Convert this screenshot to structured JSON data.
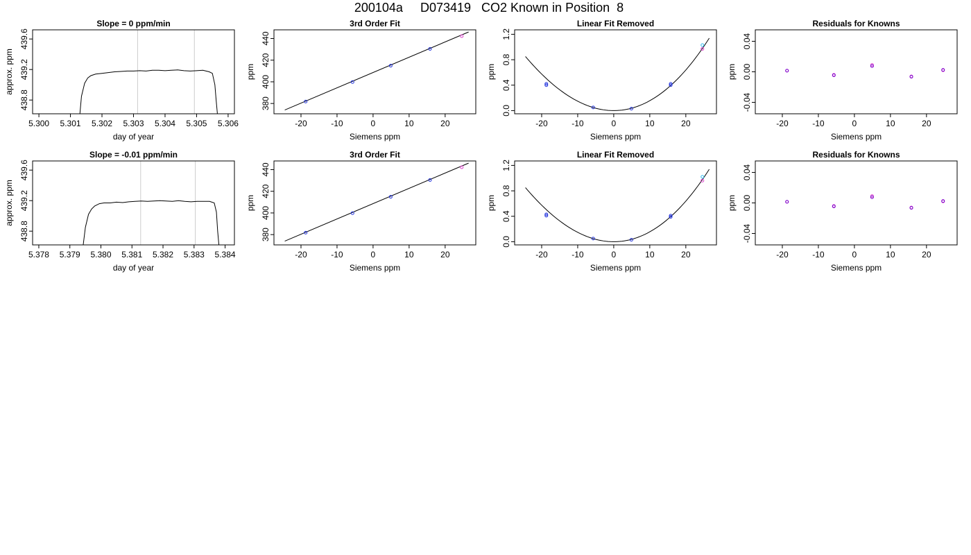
{
  "page": {
    "title": "200104a     D073419   CO2 Known in Position  8"
  },
  "colors": {
    "line": "#000000",
    "frame": "#000000",
    "vline": "#cccccc",
    "pt_cyan": "#33bbee",
    "pt_blue": "#2233dd",
    "pt_magenta": "#dd44cc",
    "pt_purple": "#7700cc"
  },
  "chart_data": [
    {
      "type": "line",
      "title": "Slope =  0  ppm/min",
      "xlabel": "day of year",
      "ylabel": "approx. ppm",
      "xlim": [
        5.2998,
        5.3062
      ],
      "ylim": [
        438.62,
        439.72
      ],
      "xticks": [
        5.3,
        5.301,
        5.302,
        5.303,
        5.304,
        5.305,
        5.306
      ],
      "xtick_labels": [
        "5.300",
        "5.301",
        "5.302",
        "5.303",
        "5.304",
        "5.305",
        "5.306"
      ],
      "yticks": [
        438.8,
        439.2,
        439.6
      ],
      "ytick_labels": [
        "438.8",
        "439.2",
        "439.6"
      ],
      "vlines": [
        5.30313,
        5.30493
      ],
      "series": [
        {
          "x": [
            5.3013,
            5.30135,
            5.30145,
            5.30155,
            5.30165,
            5.3018,
            5.302,
            5.3022,
            5.3024,
            5.3026,
            5.3028,
            5.303,
            5.3032,
            5.3034,
            5.3036,
            5.3038,
            5.304,
            5.3042,
            5.3044,
            5.3046,
            5.3048,
            5.305,
            5.3052,
            5.3054,
            5.3055,
            5.30558,
            5.30562,
            5.30566
          ],
          "y": [
            438.62,
            438.85,
            439.02,
            439.09,
            439.12,
            439.14,
            439.15,
            439.16,
            439.17,
            439.175,
            439.18,
            439.18,
            439.185,
            439.18,
            439.19,
            439.19,
            439.185,
            439.19,
            439.195,
            439.185,
            439.18,
            439.185,
            439.19,
            439.17,
            439.15,
            439.0,
            438.8,
            438.62
          ]
        }
      ]
    },
    {
      "type": "scatter",
      "title": "3rd Order Fit",
      "xlabel": "Siemens ppm",
      "ylabel": "ppm",
      "xlim": [
        -27.5,
        28.5
      ],
      "ylim": [
        370.5,
        448
      ],
      "xticks": [
        -20,
        -10,
        0,
        10,
        20
      ],
      "xtick_labels": [
        "-20",
        "-10",
        "0",
        "10",
        "20"
      ],
      "yticks": [
        380,
        400,
        420,
        440
      ],
      "ytick_labels": [
        "380",
        "400",
        "420",
        "440"
      ],
      "fit": {
        "kind": "linear",
        "x": [
          -24.5,
          26.5
        ],
        "y": [
          374.0,
          446.0
        ]
      },
      "series": [
        {
          "color": "pt_blue",
          "x": [
            -18.7,
            -5.7,
            4.9,
            15.8
          ],
          "y": [
            381.8,
            399.8,
            414.9,
            430.4
          ]
        },
        {
          "color": "pt_magenta",
          "x": [
            24.6
          ],
          "y": [
            442.2
          ]
        }
      ]
    },
    {
      "type": "scatter",
      "title": "Linear Fit Removed",
      "xlabel": "Siemens ppm",
      "ylabel": "ppm",
      "xlim": [
        -27.5,
        28.5
      ],
      "ylim": [
        -0.05,
        1.27
      ],
      "xticks": [
        -20,
        -10,
        0,
        10,
        20
      ],
      "xtick_labels": [
        "-20",
        "-10",
        "0",
        "10",
        "20"
      ],
      "yticks": [
        0.0,
        0.4,
        0.8,
        1.2
      ],
      "ytick_labels": [
        "0.0",
        "0.4",
        "0.8",
        "1.2"
      ],
      "fit": {
        "kind": "curve",
        "x_from": -24.5,
        "x_to": 26.5,
        "a": 0.001516,
        "b": 4e-06
      },
      "series": [
        {
          "color": "pt_cyan",
          "x": [
            24.6
          ],
          "y": [
            1.03
          ]
        },
        {
          "color": "pt_magenta",
          "x": [
            24.6
          ],
          "y": [
            0.97
          ]
        },
        {
          "color": "pt_blue",
          "x": [
            -18.7,
            -18.7,
            -5.7,
            4.9,
            15.8,
            15.8
          ],
          "y": [
            0.42,
            0.4,
            0.05,
            0.03,
            0.4,
            0.42
          ]
        }
      ]
    },
    {
      "type": "scatter",
      "title": "Residuals for Knowns",
      "xlabel": "Siemens ppm",
      "ylabel": "ppm",
      "xlim": [
        -27.5,
        28.5
      ],
      "ylim": [
        -0.055,
        0.055
      ],
      "xticks": [
        -20,
        -10,
        0,
        10,
        20
      ],
      "xtick_labels": [
        "-20",
        "-10",
        "0",
        "10",
        "20"
      ],
      "yticks": [
        -0.04,
        0.0,
        0.04
      ],
      "ytick_labels": [
        "-0.04",
        "0.00",
        "0.04"
      ],
      "series": [
        {
          "color": "pt_magenta",
          "x": [
            -18.7,
            -5.7,
            4.9,
            15.8,
            24.6
          ],
          "y": [
            0.0015,
            -0.004,
            0.009,
            -0.006,
            0.002
          ]
        },
        {
          "color": "pt_purple",
          "x": [
            -18.7,
            -5.7,
            4.9,
            15.8,
            24.6
          ],
          "y": [
            0.0015,
            -0.0045,
            0.0075,
            -0.0065,
            0.0025
          ]
        }
      ]
    },
    {
      "type": "line",
      "title": "Slope =  -0.01  ppm/min",
      "xlabel": "day of year",
      "ylabel": "approx. ppm",
      "xlim": [
        5.3778,
        5.3843
      ],
      "ylim": [
        438.62,
        439.72
      ],
      "xticks": [
        5.378,
        5.379,
        5.38,
        5.381,
        5.382,
        5.383,
        5.384
      ],
      "xtick_labels": [
        "5.378",
        "5.379",
        "5.380",
        "5.381",
        "5.382",
        "5.383",
        "5.384"
      ],
      "yticks": [
        438.8,
        439.2,
        439.6
      ],
      "ytick_labels": [
        "438.8",
        "439.2",
        "439.6"
      ],
      "vlines": [
        5.38128,
        5.38304
      ],
      "series": [
        {
          "x": [
            5.37943,
            5.3795,
            5.3796,
            5.3797,
            5.3798,
            5.37995,
            5.3801,
            5.3803,
            5.3805,
            5.3807,
            5.3809,
            5.3811,
            5.3813,
            5.3815,
            5.3817,
            5.3819,
            5.3821,
            5.3823,
            5.3825,
            5.3827,
            5.3829,
            5.3831,
            5.3833,
            5.3835,
            5.38365,
            5.38372,
            5.38376,
            5.3838
          ],
          "y": [
            438.62,
            438.85,
            439.02,
            439.09,
            439.13,
            439.16,
            439.17,
            439.17,
            439.18,
            439.175,
            439.185,
            439.19,
            439.195,
            439.19,
            439.195,
            439.2,
            439.195,
            439.19,
            439.2,
            439.19,
            439.185,
            439.19,
            439.19,
            439.19,
            439.17,
            439.05,
            438.8,
            438.62
          ]
        }
      ]
    },
    {
      "type": "scatter",
      "title": "3rd Order Fit",
      "xlabel": "Siemens ppm",
      "ylabel": "ppm",
      "xlim": [
        -27.5,
        28.5
      ],
      "ylim": [
        370.5,
        448
      ],
      "xticks": [
        -20,
        -10,
        0,
        10,
        20
      ],
      "xtick_labels": [
        "-20",
        "-10",
        "0",
        "10",
        "20"
      ],
      "yticks": [
        380,
        400,
        420,
        440
      ],
      "ytick_labels": [
        "380",
        "400",
        "420",
        "440"
      ],
      "fit": {
        "kind": "linear",
        "x": [
          -24.5,
          26.5
        ],
        "y": [
          374.0,
          446.0
        ]
      },
      "series": [
        {
          "color": "pt_blue",
          "x": [
            -18.7,
            -5.7,
            4.9,
            15.8
          ],
          "y": [
            381.8,
            399.8,
            414.9,
            430.4
          ]
        },
        {
          "color": "pt_magenta",
          "x": [
            24.6
          ],
          "y": [
            442.2
          ]
        }
      ]
    },
    {
      "type": "scatter",
      "title": "Linear Fit Removed",
      "xlabel": "Siemens ppm",
      "ylabel": "ppm",
      "xlim": [
        -27.5,
        28.5
      ],
      "ylim": [
        -0.05,
        1.27
      ],
      "xticks": [
        -20,
        -10,
        0,
        10,
        20
      ],
      "xtick_labels": [
        "-20",
        "-10",
        "0",
        "10",
        "20"
      ],
      "yticks": [
        0.0,
        0.4,
        0.8,
        1.2
      ],
      "ytick_labels": [
        "0.0",
        "0.4",
        "0.8",
        "1.2"
      ],
      "fit": {
        "kind": "curve",
        "x_from": -24.5,
        "x_to": 26.5,
        "a": 0.001516,
        "b": 4e-06
      },
      "series": [
        {
          "color": "pt_cyan",
          "x": [
            24.6
          ],
          "y": [
            1.02
          ]
        },
        {
          "color": "pt_magenta",
          "x": [
            24.6
          ],
          "y": [
            0.96
          ]
        },
        {
          "color": "pt_blue",
          "x": [
            -18.7,
            -18.7,
            -5.7,
            4.9,
            15.8,
            15.8
          ],
          "y": [
            0.43,
            0.41,
            0.05,
            0.03,
            0.39,
            0.41
          ]
        }
      ]
    },
    {
      "type": "scatter",
      "title": "Residuals for Knowns",
      "xlabel": "Siemens ppm",
      "ylabel": "ppm",
      "xlim": [
        -27.5,
        28.5
      ],
      "ylim": [
        -0.055,
        0.055
      ],
      "xticks": [
        -20,
        -10,
        0,
        10,
        20
      ],
      "xtick_labels": [
        "-20",
        "-10",
        "0",
        "10",
        "20"
      ],
      "yticks": [
        -0.04,
        0.0,
        0.04
      ],
      "ytick_labels": [
        "-0.04",
        "0.00",
        "0.04"
      ],
      "series": [
        {
          "color": "pt_magenta",
          "x": [
            -18.7,
            -5.7,
            4.9,
            15.8,
            24.6
          ],
          "y": [
            0.0015,
            -0.004,
            0.009,
            -0.006,
            0.002
          ]
        },
        {
          "color": "pt_purple",
          "x": [
            -18.7,
            -5.7,
            4.9,
            15.8,
            24.6
          ],
          "y": [
            0.0015,
            -0.0045,
            0.0075,
            -0.0065,
            0.0025
          ]
        }
      ]
    }
  ]
}
